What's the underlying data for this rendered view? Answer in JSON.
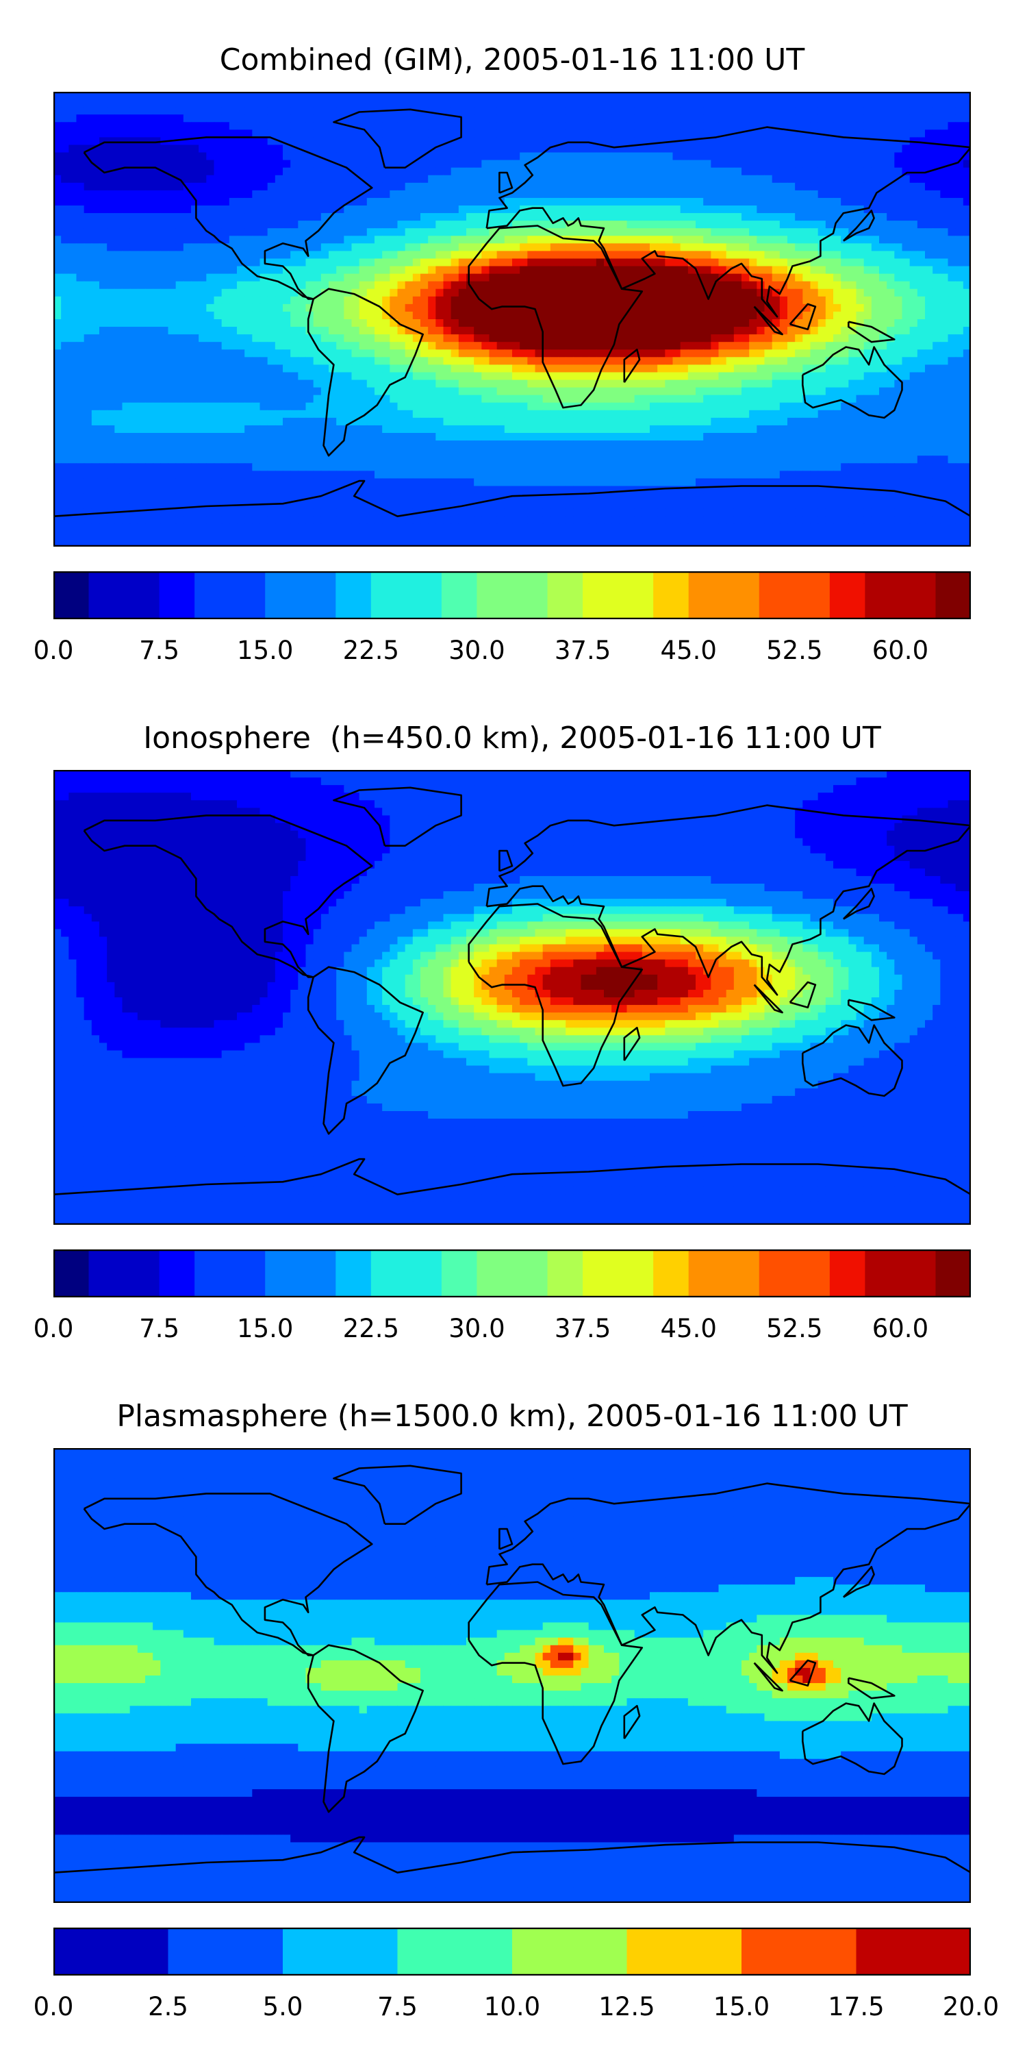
{
  "panels": [
    {
      "id": "combined",
      "title": "Combined (GIM), 2005-01-16 11:00 UT",
      "colorbar": {
        "min": 0,
        "max": 65,
        "levels": 26,
        "ticks": [
          "0.0",
          "7.5",
          "15.0",
          "22.5",
          "30.0",
          "37.5",
          "45.0",
          "52.5",
          "60.0"
        ],
        "tick_values": [
          0,
          7.5,
          15,
          22.5,
          30,
          37.5,
          45,
          52.5,
          60
        ]
      },
      "field": {
        "background": 14,
        "blobs": [
          {
            "lon": 45,
            "lat": 5,
            "rx": 80,
            "ry": 18,
            "v": 44
          },
          {
            "lon": 20,
            "lat": 5,
            "rx": 60,
            "ry": 25,
            "v": 40
          },
          {
            "lon": 60,
            "lat": 5,
            "rx": 90,
            "ry": 30,
            "v": 34
          },
          {
            "lon": 30,
            "lat": 0,
            "rx": 110,
            "ry": 40,
            "v": 26
          },
          {
            "lon": -100,
            "lat": 5,
            "rx": 80,
            "ry": 20,
            "v": 20
          },
          {
            "lon": -140,
            "lat": -40,
            "rx": 50,
            "ry": 12,
            "v": 20
          },
          {
            "lon": 0,
            "lat": -40,
            "rx": 120,
            "ry": 14,
            "v": 18
          },
          {
            "lon": -150,
            "lat": 60,
            "rx": 80,
            "ry": 25,
            "v": 6
          }
        ]
      }
    },
    {
      "id": "ionosphere",
      "title": "Ionosphere  (h=450.0 km), 2005-01-16 11:00 UT",
      "colorbar": {
        "min": 0,
        "max": 65,
        "levels": 26,
        "ticks": [
          "0.0",
          "7.5",
          "15.0",
          "22.5",
          "30.0",
          "37.5",
          "45.0",
          "52.5",
          "60.0"
        ],
        "tick_values": [
          0,
          7.5,
          15,
          22.5,
          30,
          37.5,
          45,
          52.5,
          60
        ]
      },
      "field": {
        "background": 11,
        "blobs": [
          {
            "lon": 40,
            "lat": 5,
            "rx": 70,
            "ry": 20,
            "v": 36
          },
          {
            "lon": 50,
            "lat": 10,
            "rx": 90,
            "ry": 25,
            "v": 30
          },
          {
            "lon": 30,
            "lat": 0,
            "rx": 110,
            "ry": 38,
            "v": 22
          },
          {
            "lon": -110,
            "lat": 10,
            "rx": 70,
            "ry": 30,
            "v": 2
          },
          {
            "lon": -150,
            "lat": 60,
            "rx": 80,
            "ry": 25,
            "v": 4
          },
          {
            "lon": 0,
            "lat": -40,
            "rx": 120,
            "ry": 14,
            "v": 14
          }
        ]
      }
    },
    {
      "id": "plasmasphere",
      "title": "Plasmasphere (h=1500.0 km), 2005-01-16 11:00 UT",
      "colorbar": {
        "min": 0,
        "max": 20,
        "levels": 8,
        "ticks": [
          "0.0",
          "2.5",
          "5.0",
          "7.5",
          "10.0",
          "12.5",
          "15.0",
          "17.5",
          "20.0"
        ],
        "tick_values": [
          0,
          2.5,
          5,
          7.5,
          10,
          12.5,
          15,
          17.5,
          20
        ]
      },
      "field": {
        "background": 4,
        "blobs": [
          {
            "lon": 0,
            "lat": 0,
            "rx": 360,
            "ry": 28,
            "v": 7
          },
          {
            "lon": -160,
            "lat": 5,
            "rx": 40,
            "ry": 18,
            "v": 8.5
          },
          {
            "lon": -60,
            "lat": 0,
            "rx": 40,
            "ry": 12,
            "v": 8.2
          },
          {
            "lon": 20,
            "lat": 5,
            "rx": 30,
            "ry": 14,
            "v": 9
          },
          {
            "lon": 20,
            "lat": 8,
            "rx": 8,
            "ry": 6,
            "v": 11
          },
          {
            "lon": 120,
            "lat": 5,
            "rx": 45,
            "ry": 22,
            "v": 9
          },
          {
            "lon": 115,
            "lat": 0,
            "rx": 10,
            "ry": 6,
            "v": 11
          },
          {
            "lon": 0,
            "lat": -55,
            "rx": 360,
            "ry": 12,
            "v": 1
          }
        ]
      }
    }
  ],
  "colors": {
    "jet": [
      "#000080",
      "#0000c8",
      "#0000ff",
      "#0040ff",
      "#0080ff",
      "#00c0ff",
      "#20f0e0",
      "#50ffb0",
      "#80ff80",
      "#b0ff50",
      "#e0ff20",
      "#ffd000",
      "#ff9000",
      "#ff5000",
      "#f01000",
      "#b00000",
      "#800000"
    ],
    "plasmasphere": [
      "#0000c0",
      "#0050ff",
      "#00c0ff",
      "#40ffb0",
      "#a0ff50",
      "#ffd000",
      "#ff5000",
      "#c00000"
    ]
  }
}
